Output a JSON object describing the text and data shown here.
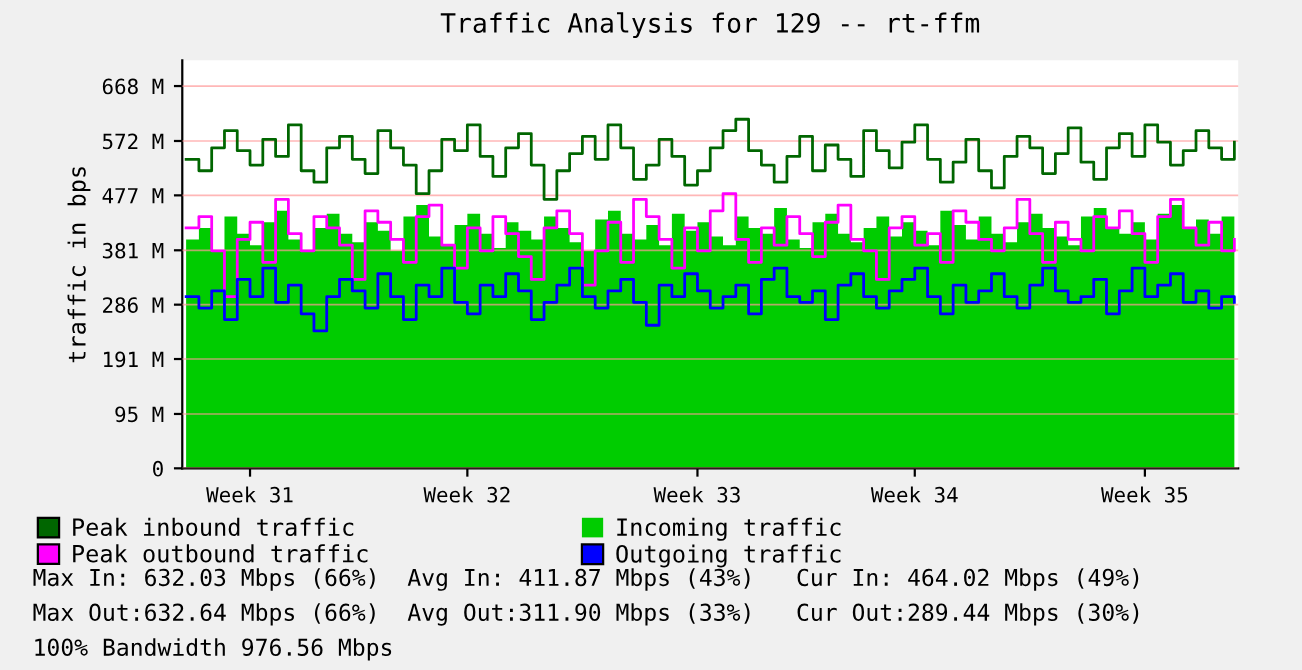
{
  "chart_data": {
    "type": "step",
    "title": "Traffic Analysis for 129 -- rt-ffm",
    "ylabel": "traffic in bps",
    "categories": [
      null,
      null,
      null,
      null,
      null,
      "Week 31",
      null,
      null,
      null,
      null,
      null,
      null,
      null,
      null,
      null,
      null,
      null,
      null,
      null,
      null,
      null,
      null,
      "Week 32",
      null,
      null,
      null,
      null,
      null,
      null,
      null,
      null,
      null,
      null,
      null,
      null,
      null,
      null,
      null,
      null,
      null,
      "Week 33",
      null,
      null,
      null,
      null,
      null,
      null,
      null,
      null,
      null,
      null,
      null,
      null,
      null,
      null,
      null,
      null,
      "Week 34",
      null,
      null,
      null,
      null,
      null,
      null,
      null,
      null,
      null,
      null,
      null,
      null,
      null,
      null,
      null,
      null,
      null,
      "Week 35",
      null,
      null,
      null,
      null,
      null,
      null,
      null
    ],
    "series": [
      {
        "name": "Peak inbound traffic",
        "color": "#006600",
        "values": [
          540,
          520,
          560,
          590,
          555,
          530,
          575,
          545,
          600,
          520,
          500,
          560,
          580,
          540,
          515,
          590,
          560,
          530,
          480,
          520,
          575,
          555,
          600,
          545,
          510,
          560,
          585,
          530,
          470,
          520,
          550,
          580,
          540,
          600,
          560,
          505,
          530,
          575,
          545,
          495,
          520,
          560,
          590,
          610,
          555,
          530,
          500,
          545,
          580,
          520,
          565,
          540,
          510,
          590,
          555,
          525,
          570,
          600,
          540,
          500,
          535,
          575,
          520,
          490,
          545,
          580,
          560,
          515,
          550,
          595,
          535,
          505,
          560,
          585,
          545,
          600,
          570,
          530,
          555,
          590,
          560,
          540,
          570
        ]
      },
      {
        "name": "Peak outbound traffic",
        "color": "#ff00ff",
        "values": [
          420,
          440,
          380,
          300,
          400,
          430,
          360,
          470,
          410,
          380,
          440,
          420,
          390,
          330,
          450,
          430,
          400,
          360,
          440,
          460,
          390,
          350,
          420,
          380,
          440,
          410,
          370,
          330,
          420,
          450,
          410,
          320,
          380,
          430,
          360,
          470,
          440,
          400,
          350,
          420,
          380,
          450,
          480,
          400,
          360,
          420,
          390,
          440,
          410,
          370,
          430,
          460,
          400,
          380,
          330,
          420,
          440,
          390,
          410,
          360,
          450,
          430,
          400,
          380,
          420,
          470,
          410,
          360,
          430,
          400,
          380,
          440,
          420,
          450,
          410,
          360,
          440,
          470,
          420,
          390,
          430,
          380,
          400
        ]
      },
      {
        "name": "Incoming traffic",
        "type": "area",
        "color": "#00cc00",
        "values": [
          400,
          420,
          380,
          440,
          410,
          390,
          430,
          450,
          400,
          380,
          420,
          445,
          410,
          395,
          430,
          415,
          380,
          440,
          460,
          405,
          390,
          425,
          445,
          410,
          385,
          430,
          415,
          400,
          440,
          420,
          395,
          380,
          435,
          450,
          410,
          400,
          425,
          390,
          445,
          415,
          430,
          405,
          390,
          440,
          420,
          410,
          455,
          400,
          385,
          430,
          445,
          410,
          395,
          420,
          440,
          405,
          430,
          415,
          390,
          450,
          425,
          400,
          440,
          410,
          395,
          430,
          445,
          420,
          405,
          390,
          440,
          455,
          420,
          410,
          430,
          400,
          445,
          460,
          420,
          435,
          410,
          440,
          450
        ]
      },
      {
        "name": "Outgoing traffic",
        "color": "#0000ff",
        "values": [
          300,
          280,
          310,
          260,
          330,
          300,
          350,
          290,
          320,
          270,
          240,
          300,
          330,
          310,
          280,
          340,
          300,
          260,
          320,
          300,
          350,
          290,
          270,
          320,
          300,
          340,
          310,
          260,
          290,
          320,
          350,
          300,
          280,
          310,
          330,
          290,
          250,
          320,
          300,
          340,
          310,
          280,
          300,
          320,
          270,
          330,
          350,
          300,
          290,
          310,
          260,
          320,
          340,
          300,
          280,
          310,
          330,
          350,
          300,
          270,
          320,
          290,
          310,
          340,
          300,
          280,
          320,
          350,
          310,
          290,
          300,
          330,
          270,
          310,
          350,
          300,
          320,
          340,
          290,
          310,
          280,
          300,
          290
        ]
      }
    ],
    "ylim": [
      0,
      713
    ],
    "yticks": [
      0,
      {
        "value": 95,
        "label": "95 M"
      },
      {
        "value": 191,
        "label": "191 M"
      },
      {
        "value": 286,
        "label": "286 M"
      },
      {
        "value": 381,
        "label": "381 M"
      },
      {
        "value": 477,
        "label": "477 M"
      },
      {
        "value": 572,
        "label": "572 M"
      },
      {
        "value": 668,
        "label": "668 M"
      }
    ],
    "grid": "y",
    "legend": "bottom",
    "annotations": [
      "Max In: 632.03 Mbps (66%)  Avg In: 411.87 Mbps (43%)   Cur In: 464.02 Mbps (49%)",
      "Max Out:632.64 Mbps (66%)  Avg Out:311.90 Mbps (33%)   Cur Out:289.44 Mbps (30%)",
      "100% Bandwidth 976.56 Mbps"
    ]
  }
}
